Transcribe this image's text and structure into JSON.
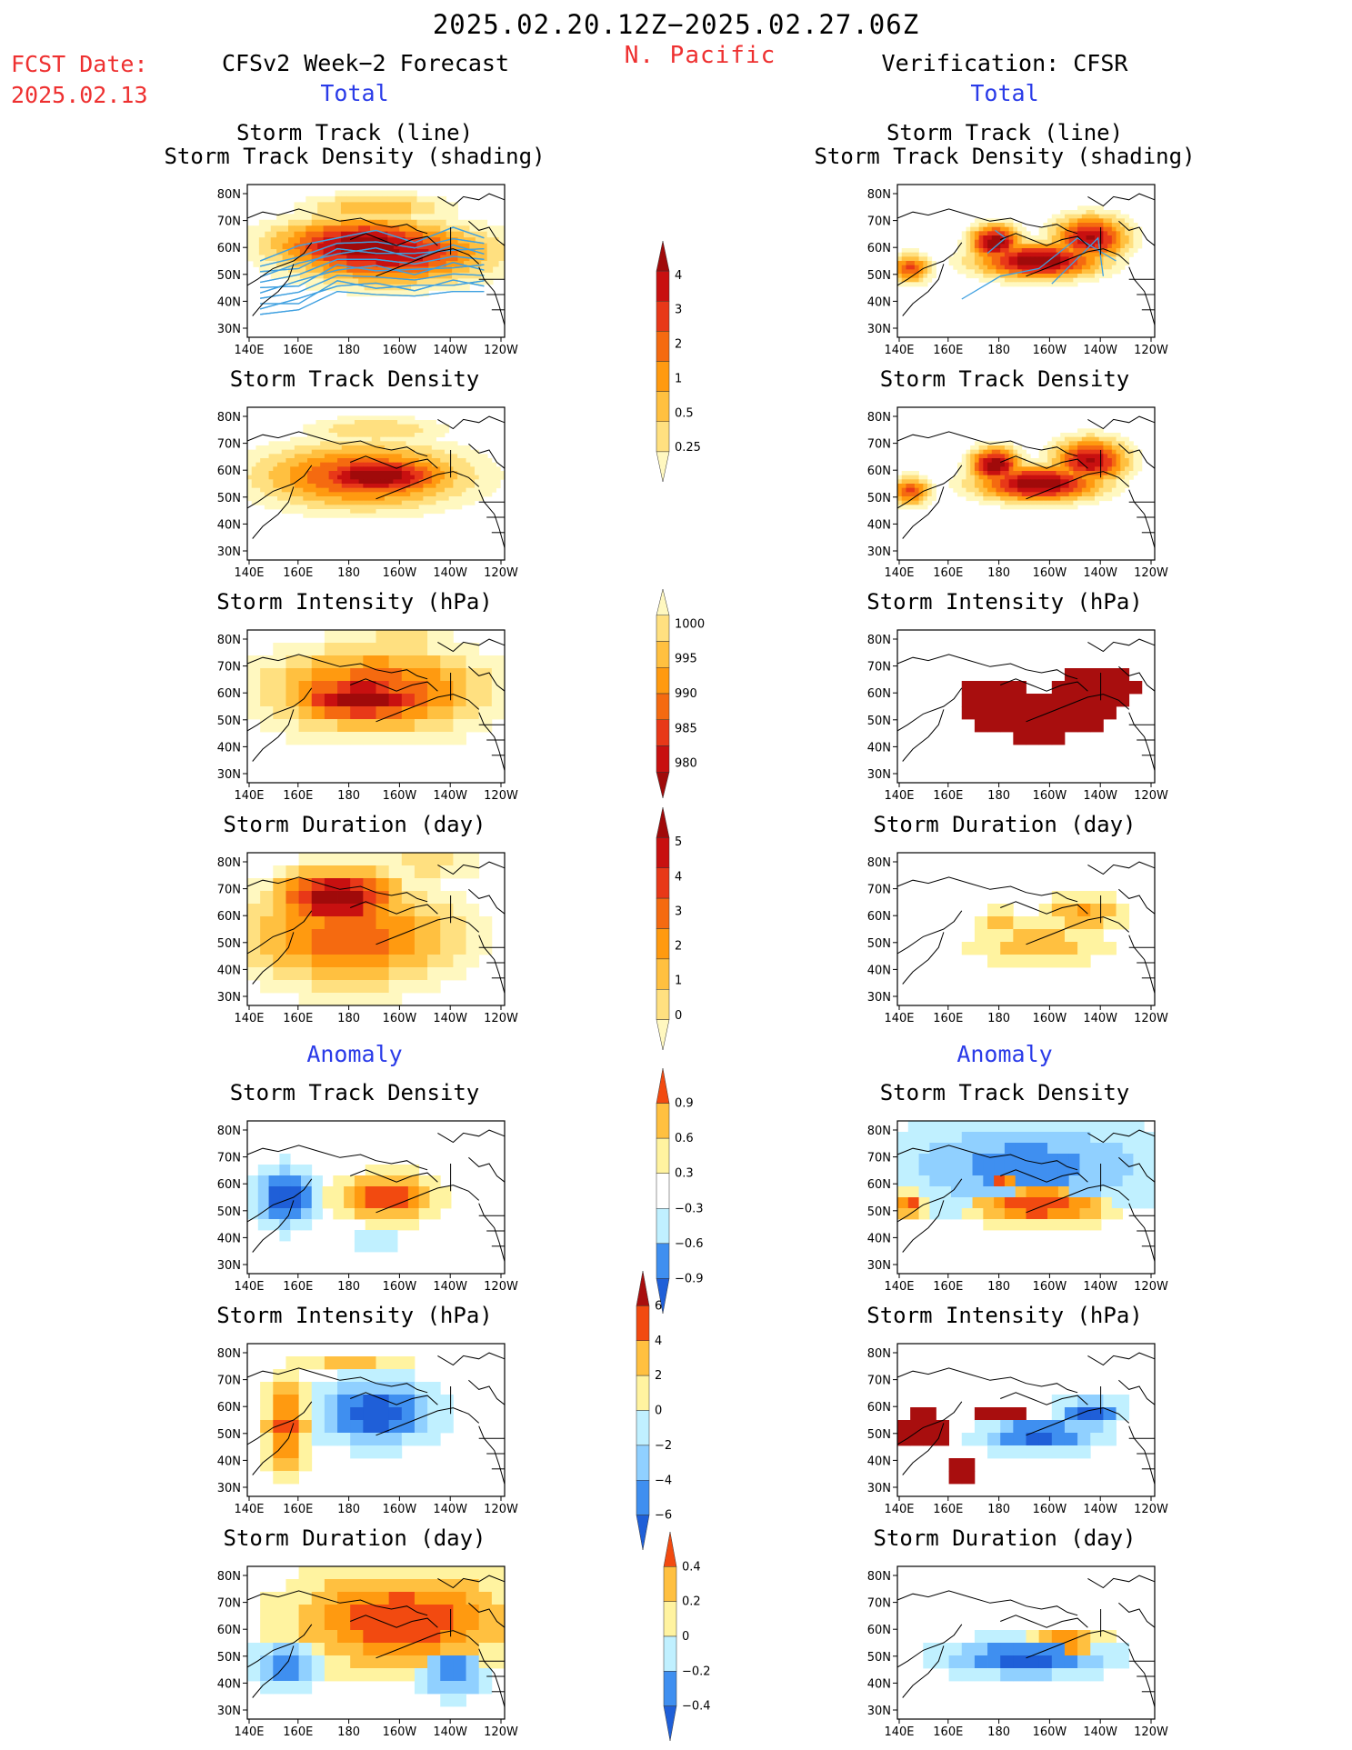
{
  "header": {
    "date_range": "2025.02.20.12Z−2025.02.27.06Z",
    "fcst_label": "FCST Date:",
    "fcst_date": "2025.02.13",
    "region": "N. Pacific",
    "left_title": "CFSv2 Week−2 Forecast",
    "right_title": "Verification: CFSR",
    "total_label": "Total",
    "anomaly_label": "Anomaly"
  },
  "map_axes": {
    "lat_labels": [
      "80N",
      "70N",
      "60N",
      "50N",
      "40N",
      "30N"
    ],
    "lon_labels": [
      "140E",
      "160E",
      "180",
      "160W",
      "140W",
      "120W"
    ]
  },
  "panel_titles": {
    "track_line": "Storm Track (line)",
    "track_shading": "Storm Track Density (shading)",
    "density": "Storm Track Density",
    "intensity": "Storm Intensity (hPa)",
    "duration": "Storm Duration (day)"
  },
  "colors": {
    "total_scale": [
      "#fff8c0",
      "#ffe080",
      "#ffc040",
      "#ff9a10",
      "#f56a10",
      "#e83818",
      "#c81010",
      "#a00a0a"
    ],
    "anom_warm": [
      "#fff3a0",
      "#ffc040",
      "#ff9a10",
      "#f24a10"
    ],
    "anom_cool": [
      "#c0f0ff",
      "#90d0ff",
      "#3f8ff0",
      "#1f5fd8"
    ],
    "dark_red": "#a80e0e",
    "track_line": "#3fa0e0"
  },
  "chart_data": [
    {
      "type": "heatmap",
      "name": "forecast-track-density-shading",
      "title": "Storm Track (line) / Storm Track Density (shading)",
      "xlabel": "",
      "ylabel": ""
    },
    {
      "type": "heatmap",
      "name": "forecast-track-density",
      "title": "Storm Track Density"
    },
    {
      "type": "heatmap",
      "name": "forecast-intensity",
      "title": "Storm Intensity (hPa)"
    },
    {
      "type": "heatmap",
      "name": "forecast-duration",
      "title": "Storm Duration (day)"
    },
    {
      "type": "heatmap",
      "name": "forecast-density-anomaly",
      "title": "Storm Track Density"
    },
    {
      "type": "heatmap",
      "name": "forecast-intensity-anomaly",
      "title": "Storm Intensity (hPa)"
    },
    {
      "type": "heatmap",
      "name": "forecast-duration-anomaly",
      "title": "Storm Duration (day)"
    },
    {
      "type": "heatmap",
      "name": "verif-track-density-shading",
      "title": "Storm Track (line) / Storm Track Density (shading)"
    },
    {
      "type": "heatmap",
      "name": "verif-track-density",
      "title": "Storm Track Density"
    },
    {
      "type": "heatmap",
      "name": "verif-intensity",
      "title": "Storm Intensity (hPa)"
    },
    {
      "type": "heatmap",
      "name": "verif-duration",
      "title": "Storm Duration (day)"
    },
    {
      "type": "heatmap",
      "name": "verif-density-anomaly",
      "title": "Storm Track Density"
    },
    {
      "type": "heatmap",
      "name": "verif-intensity-anomaly",
      "title": "Storm Intensity (hPa)"
    },
    {
      "type": "heatmap",
      "name": "verif-duration-anomaly",
      "title": "Storm Duration (day)"
    }
  ],
  "colorbars": {
    "density": {
      "labels": [
        "4",
        "3",
        "2",
        "1",
        "0.5",
        "0.25"
      ]
    },
    "intensity": {
      "labels": [
        "1000",
        "995",
        "990",
        "985",
        "980"
      ]
    },
    "duration": {
      "labels": [
        "5",
        "4",
        "3",
        "2",
        "1",
        "0"
      ]
    },
    "density_anom": {
      "labels": [
        "0.9",
        "0.6",
        "0.3",
        "−0.3",
        "−0.6",
        "−0.9"
      ]
    },
    "intensity_anom": {
      "labels": [
        "6",
        "4",
        "2",
        "0",
        "−2",
        "−4",
        "−6"
      ]
    },
    "duration_anom": {
      "labels": [
        "0.4",
        "0.2",
        "0",
        "−0.2",
        "−0.4"
      ]
    }
  }
}
